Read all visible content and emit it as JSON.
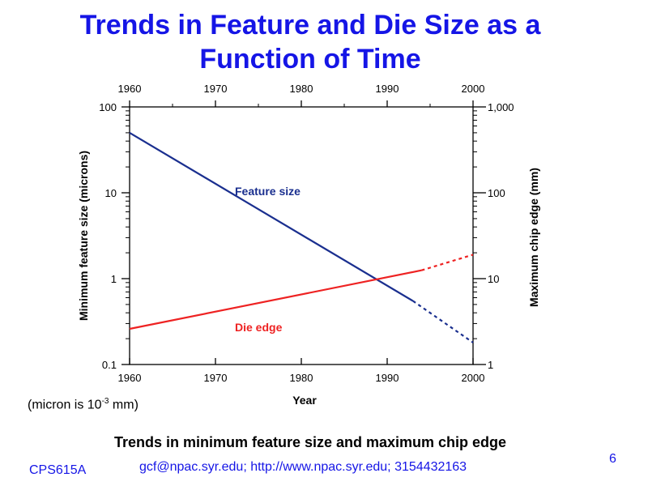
{
  "slide": {
    "title_line1": "Trends in Feature and Die Size as a",
    "title_line2": "Function of Time",
    "note_prefix": "(micron is 10",
    "note_exp": "-3",
    "note_suffix": " mm)",
    "caption": "Trends in minimum feature size and maximum chip edge",
    "footer_left": "CPS615A",
    "footer_mid": "gcf@npac.syr.edu; http://www.npac.syr.edu; 3154432163",
    "page_number": "6"
  },
  "colors": {
    "title": "#1515e6",
    "feature_series": "#1a2f8f",
    "die_series": "#ee2222",
    "axis": "#000000"
  },
  "chart_data": {
    "type": "line",
    "xlabel": "Year",
    "ylabel": "Minimum feature size (microns)",
    "y2label": "Maximum chip edge (mm)",
    "xlim": [
      1960,
      2000
    ],
    "ylim": [
      0.1,
      100
    ],
    "y2lim": [
      1,
      1000
    ],
    "yscale": "log",
    "y2scale": "log",
    "grid": false,
    "x_ticks": [
      1960,
      1970,
      1980,
      1990,
      2000
    ],
    "x_tick_labels": [
      "1960",
      "1970",
      "1980",
      "1990",
      "2000"
    ],
    "y_ticks": [
      0.1,
      1,
      10,
      100
    ],
    "y_tick_labels": [
      "0.1",
      "1",
      "10",
      "100"
    ],
    "y2_ticks": [
      1,
      10,
      100,
      1000
    ],
    "y2_tick_labels": [
      "1",
      "10",
      "100",
      "1,000"
    ],
    "series": [
      {
        "name": "Feature size",
        "axis": "left",
        "solid": {
          "x": [
            1960,
            1993
          ],
          "y": [
            50,
            0.55
          ]
        },
        "projected": {
          "x": [
            1993,
            2000
          ],
          "y": [
            0.55,
            0.18
          ]
        }
      },
      {
        "name": "Die edge",
        "axis": "right",
        "solid": {
          "x": [
            1960,
            1994
          ],
          "y": [
            2.6,
            12.5
          ]
        },
        "projected": {
          "x": [
            1994,
            2000
          ],
          "y": [
            12.5,
            19
          ]
        }
      }
    ]
  }
}
